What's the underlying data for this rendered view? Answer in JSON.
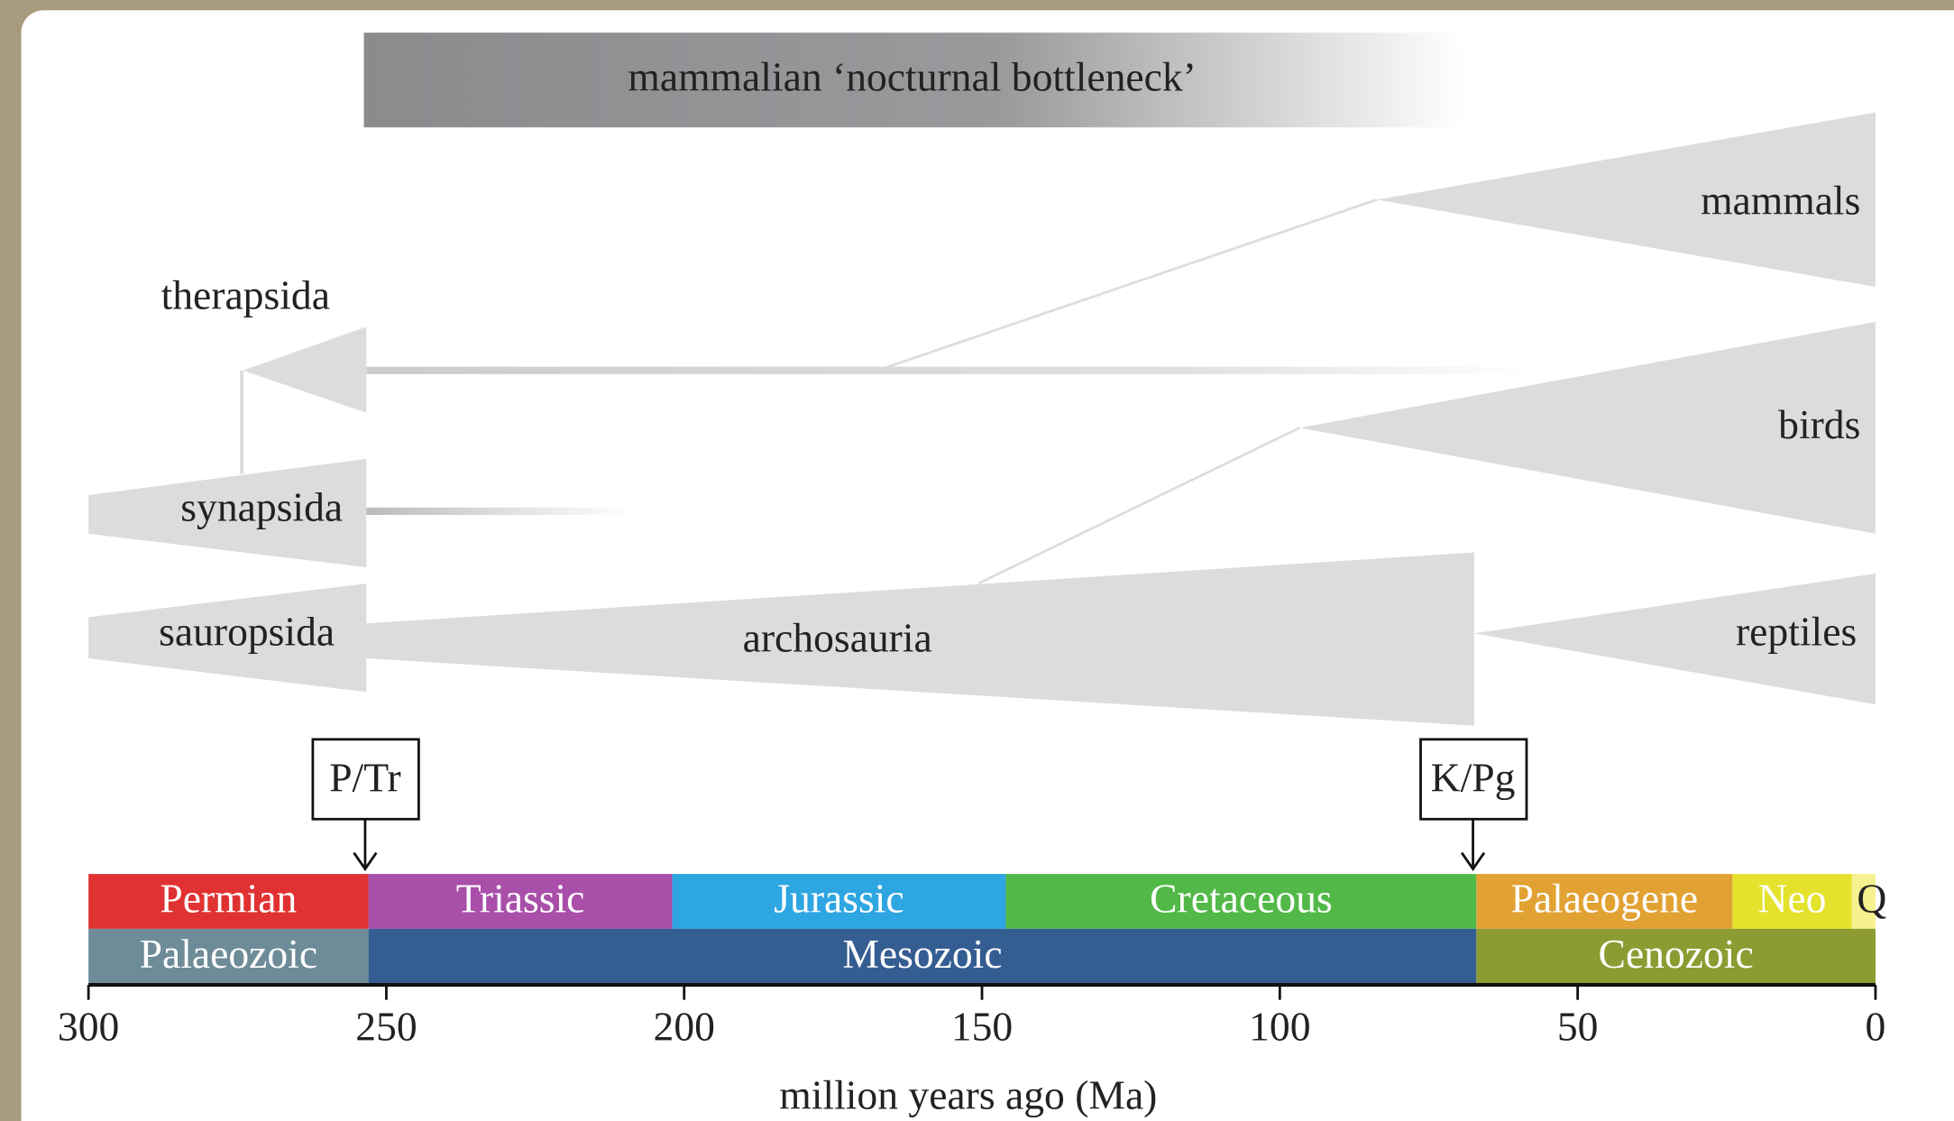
{
  "banner": "mammalian ‘nocturnal bottleneck’",
  "clades": {
    "therapsida": "therapsida",
    "synapsida": "synapsida",
    "sauropsida": "sauropsida",
    "archosauria": "archosauria",
    "mammals": "mammals",
    "birds": "birds",
    "reptiles": "reptiles"
  },
  "events": [
    "P/Tr",
    "K/Pg"
  ],
  "timescale": {
    "periods": [
      {
        "name": "Permian",
        "start": 300,
        "end": 253,
        "color": "#e03232"
      },
      {
        "name": "Triassic",
        "start": 253,
        "end": 202,
        "color": "#a94fa9"
      },
      {
        "name": "Jurassic",
        "start": 202,
        "end": 146,
        "color": "#2ea6e2"
      },
      {
        "name": "Cretaceous",
        "start": 146,
        "end": 67,
        "color": "#52b948"
      },
      {
        "name": "Palaeogene",
        "start": 67,
        "end": 24,
        "color": "#e2a233"
      },
      {
        "name": "Neo",
        "start": 24,
        "end": 4,
        "color": "#e4e22c"
      },
      {
        "name": "Q",
        "start": 4,
        "end": 0,
        "color": "#f6f08e"
      }
    ],
    "eras": [
      {
        "name": "Palaeozoic",
        "start": 300,
        "end": 253,
        "color": "#6e8b98"
      },
      {
        "name": "Mesozoic",
        "start": 253,
        "end": 67,
        "color": "#345d92"
      },
      {
        "name": "Cenozoic",
        "start": 67,
        "end": 0,
        "color": "#8c9c32"
      }
    ],
    "xlim": [
      300,
      0
    ],
    "xticks": [
      300,
      250,
      200,
      150,
      100,
      50,
      0
    ],
    "xlabel": "million years ago (Ma)"
  }
}
